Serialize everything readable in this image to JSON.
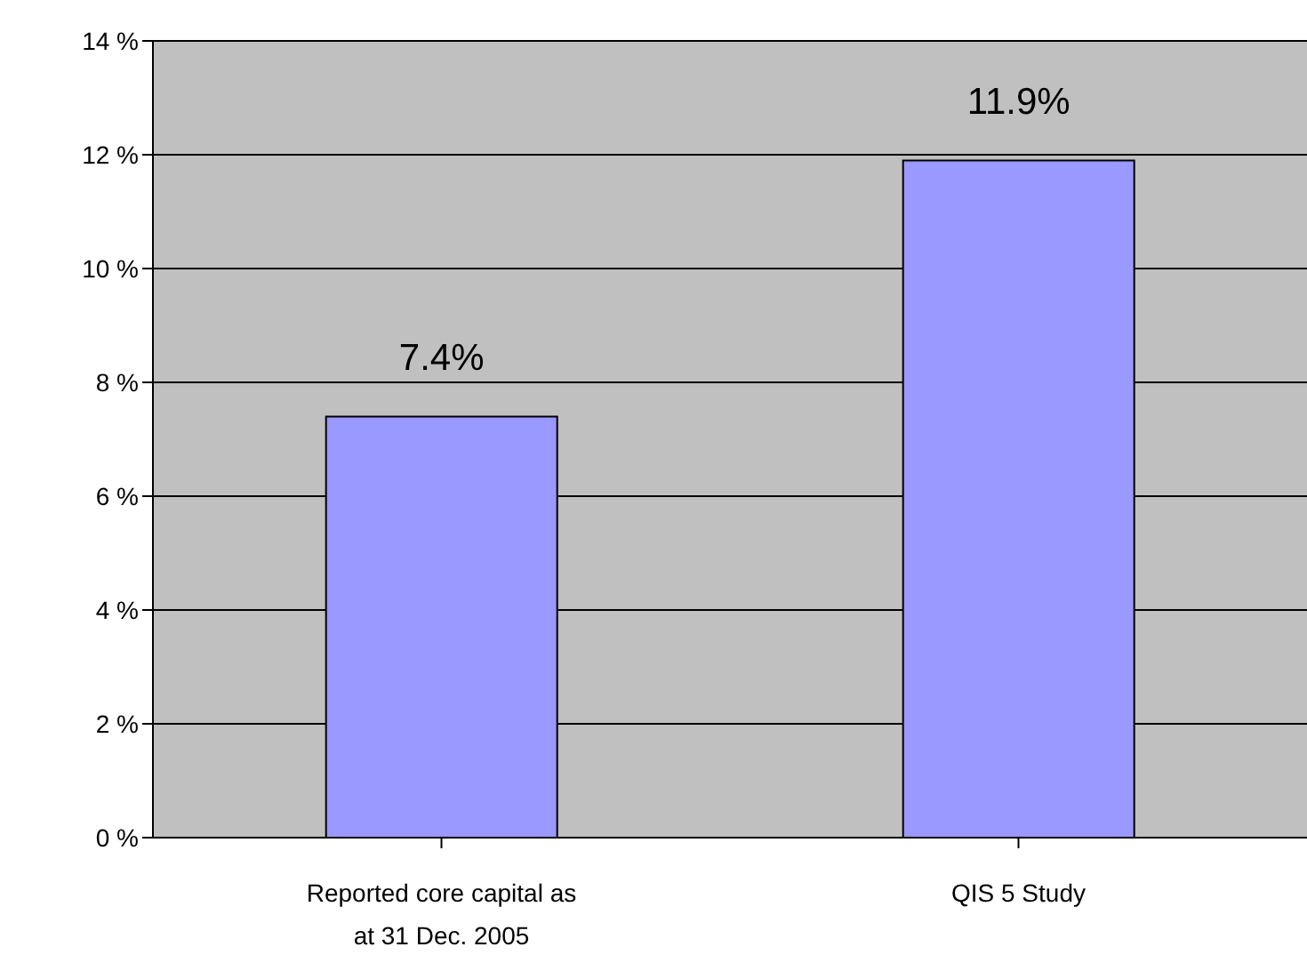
{
  "chart_data": {
    "type": "bar",
    "categories": [
      "Reported core capital as at 31 Dec. 2005",
      "QIS 5 Study"
    ],
    "values": [
      7.4,
      11.9
    ],
    "value_labels": [
      "7.4%",
      "11.9%"
    ],
    "color": "#9999ff",
    "ylim": [
      0,
      14
    ],
    "yticks": [
      {
        "value": 0,
        "label": "0 %"
      },
      {
        "value": 2,
        "label": "2 %"
      },
      {
        "value": 4,
        "label": "4 %"
      },
      {
        "value": 6,
        "label": "6 %"
      },
      {
        "value": 8,
        "label": "8 %"
      },
      {
        "value": 10,
        "label": "10 %"
      },
      {
        "value": 12,
        "label": "12 %"
      },
      {
        "value": 14,
        "label": "14 %"
      }
    ],
    "grid": "y"
  }
}
